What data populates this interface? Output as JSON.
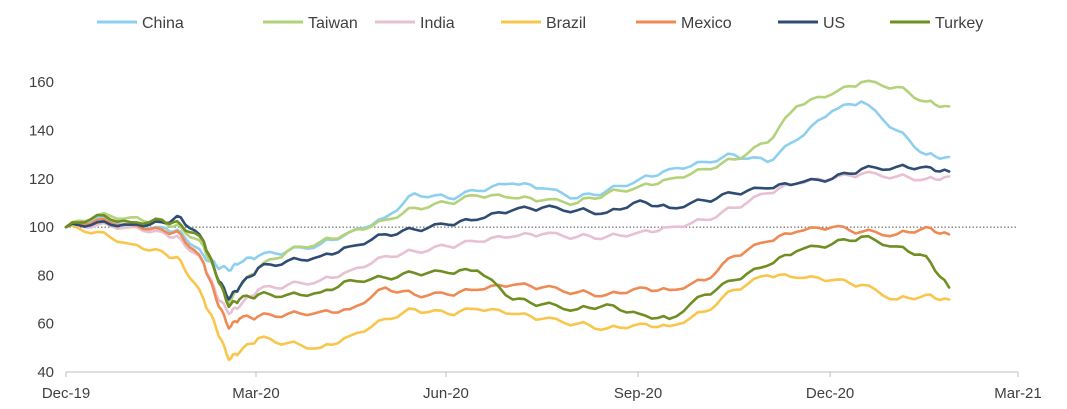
{
  "chart_data": {
    "type": "line",
    "x": [
      "2019-12-31",
      "2020-01-15",
      "2020-01-31",
      "2020-02-15",
      "2020-02-24",
      "2020-03-06",
      "2020-03-12",
      "2020-03-18",
      "2020-03-23",
      "2020-04-01",
      "2020-04-15",
      "2020-05-01",
      "2020-05-15",
      "2020-06-01",
      "2020-06-15",
      "2020-07-01",
      "2020-07-15",
      "2020-08-01",
      "2020-08-15",
      "2020-09-01",
      "2020-09-15",
      "2020-10-01",
      "2020-10-15",
      "2020-11-01",
      "2020-11-15",
      "2020-12-01",
      "2020-12-15",
      "2021-01-01",
      "2021-01-15",
      "2021-02-01",
      "2021-02-15",
      "2021-02-26"
    ],
    "xticks": [
      "Dec-19",
      "Mar-20",
      "Jun-20",
      "Sep-20",
      "Dec-20",
      "Mar-21"
    ],
    "xtick_dates": [
      "2019-12-31",
      "2020-03-31",
      "2020-06-30",
      "2020-09-30",
      "2020-12-31",
      "2021-03-31"
    ],
    "ylim": [
      40,
      170
    ],
    "yticks": [
      40,
      60,
      80,
      100,
      120,
      140,
      160
    ],
    "reference_line": 100,
    "legend_position": "top",
    "series": [
      {
        "name": "China",
        "color": "#8ecfef",
        "values": [
          100,
          104,
          101,
          100,
          98,
          88,
          84,
          82,
          85,
          88,
          90,
          93,
          98,
          104,
          114,
          112,
          115,
          118,
          116,
          112,
          115,
          120,
          124,
          127,
          130,
          127,
          136,
          148,
          152,
          140,
          130,
          129
        ]
      },
      {
        "name": "Taiwan",
        "color": "#b3d27a",
        "values": [
          100,
          105,
          104,
          102,
          100,
          92,
          80,
          68,
          75,
          83,
          90,
          94,
          98,
          103,
          108,
          110,
          113,
          112,
          111,
          110,
          114,
          117,
          120,
          124,
          128,
          135,
          150,
          155,
          160,
          158,
          152,
          150
        ]
      },
      {
        "name": "India",
        "color": "#e8c0d3",
        "values": [
          100,
          101,
          100,
          98,
          95,
          85,
          72,
          64,
          67,
          74,
          76,
          78,
          82,
          88,
          90,
          92,
          94,
          96,
          97,
          96,
          96,
          98,
          100,
          103,
          108,
          114,
          118,
          120,
          122,
          121,
          120,
          121
        ]
      },
      {
        "name": "Brazil",
        "color": "#f9c64c",
        "values": [
          100,
          98,
          93,
          90,
          86,
          70,
          58,
          45,
          48,
          54,
          52,
          50,
          55,
          62,
          66,
          64,
          66,
          64,
          62,
          60,
          58,
          60,
          59,
          65,
          74,
          80,
          79,
          78,
          76,
          70,
          72,
          70
        ]
      },
      {
        "name": "Mexico",
        "color": "#ef8a54",
        "values": [
          100,
          103,
          101,
          99,
          97,
          85,
          70,
          58,
          62,
          63,
          64,
          65,
          66,
          75,
          72,
          72,
          74,
          76,
          75,
          73,
          72,
          75,
          74,
          78,
          88,
          94,
          98,
          100,
          98,
          97,
          100,
          97
        ]
      },
      {
        "name": "US",
        "color": "#2f4d73",
        "values": [
          100,
          102,
          101,
          102,
          104,
          94,
          80,
          70,
          75,
          83,
          86,
          88,
          92,
          97,
          99,
          101,
          103,
          107,
          108,
          107,
          106,
          111,
          108,
          111,
          114,
          116,
          118,
          120,
          124,
          125,
          125,
          123
        ]
      },
      {
        "name": "Turkey",
        "color": "#6f8f22",
        "values": [
          100,
          105,
          102,
          103,
          101,
          94,
          80,
          67,
          70,
          72,
          72,
          73,
          78,
          79,
          81,
          81,
          82,
          70,
          68,
          66,
          68,
          64,
          62,
          72,
          78,
          84,
          90,
          93,
          96,
          92,
          88,
          75
        ]
      }
    ]
  }
}
